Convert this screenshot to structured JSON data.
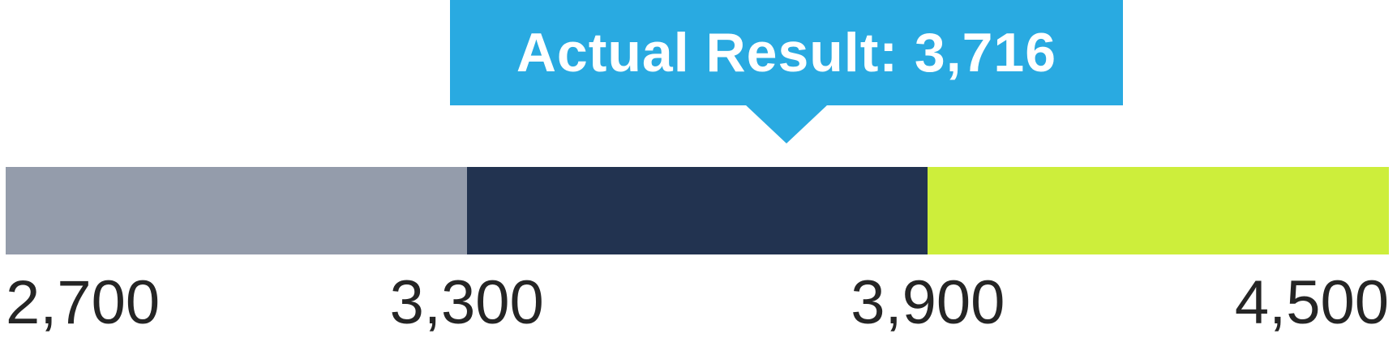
{
  "callout": {
    "text": "Actual Result: 3,716",
    "bg_color": "#29AAE1",
    "text_color": "#FFFFFF"
  },
  "chart_data": {
    "type": "bar",
    "subtype": "bullet-gauge-single-row",
    "title": "",
    "xlabel": "",
    "ylabel": "",
    "axis_min": 2700,
    "axis_max": 4500,
    "tick_values": [
      2700,
      3300,
      3900,
      4500
    ],
    "tick_labels": [
      "2,700",
      "3,300",
      "3,900",
      "4,500"
    ],
    "tick_text_color": "#252525",
    "grid": false,
    "legend": false,
    "segments": [
      {
        "name": "below-target",
        "range": [
          2700,
          3300
        ],
        "color": "#949CAB"
      },
      {
        "name": "target",
        "range": [
          3300,
          3900
        ],
        "color": "#223350"
      },
      {
        "name": "above-target",
        "range": [
          3900,
          4500
        ],
        "color": "#CDEE3B"
      }
    ],
    "actual_result": 3716,
    "annotation": {
      "text": "Actual Result: 3,716",
      "value": 3716,
      "color": "#29AAE1"
    }
  }
}
